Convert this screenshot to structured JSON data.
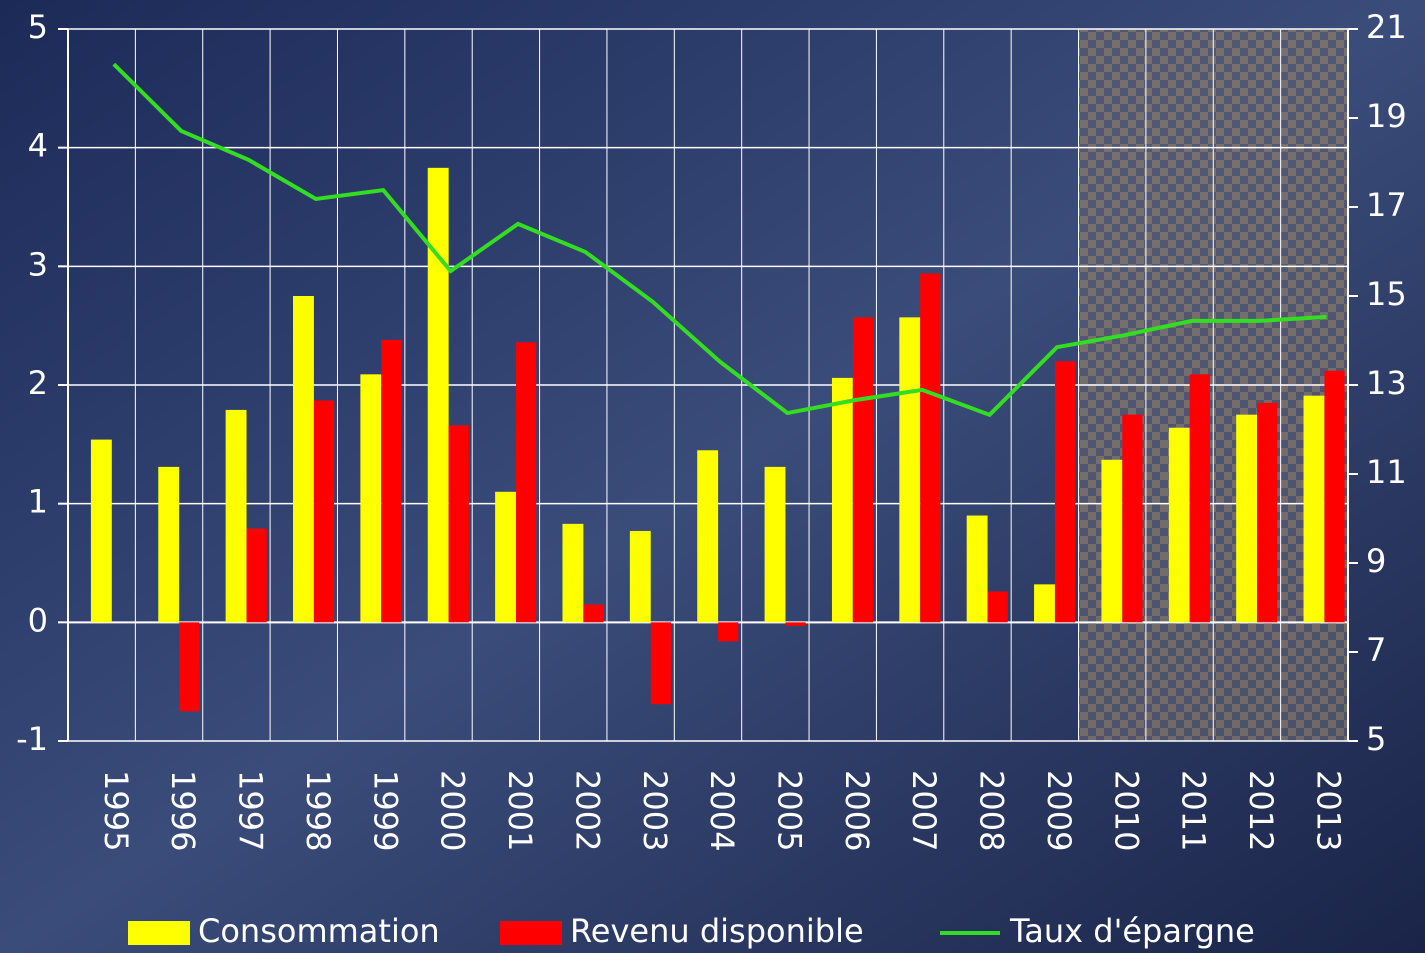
{
  "chart_data": {
    "type": "bar",
    "categories": [
      "1995",
      "1996",
      "1997",
      "1998",
      "1999",
      "2000",
      "2001",
      "2002",
      "2003",
      "2004",
      "2005",
      "2006",
      "2007",
      "2008",
      "2009",
      "2010",
      "2011",
      "2012",
      "2013"
    ],
    "series": [
      {
        "name": "Consommation",
        "color": "#ffff00",
        "values": [
          1.54,
          1.31,
          1.79,
          2.75,
          2.09,
          3.83,
          1.1,
          0.83,
          0.77,
          1.45,
          1.31,
          2.06,
          2.57,
          0.9,
          0.32,
          1.37,
          1.64,
          1.75,
          1.91
        ]
      },
      {
        "name": "Revenu disponible",
        "color": "#ff0000",
        "values": [
          null,
          -0.75,
          0.79,
          1.87,
          2.38,
          1.66,
          2.36,
          0.15,
          -0.69,
          -0.16,
          -0.03,
          2.57,
          2.94,
          0.26,
          2.2,
          1.75,
          2.09,
          1.85,
          2.12
        ]
      },
      {
        "name": "Taux d'épargne",
        "type": "line",
        "axis": "y2",
        "color": "#33dd22",
        "values": [
          20.21,
          18.71,
          18.06,
          17.18,
          17.38,
          15.56,
          16.62,
          15.99,
          14.87,
          13.52,
          12.37,
          12.66,
          12.89,
          12.33,
          13.85,
          14.12,
          14.44,
          14.44,
          14.53
        ]
      }
    ],
    "ylim": [
      -1,
      5
    ],
    "yticks": [
      -1,
      0,
      1,
      2,
      3,
      4,
      5
    ],
    "y2lim": [
      5,
      21
    ],
    "y2ticks": [
      5,
      7,
      9,
      11,
      13,
      15,
      17,
      19,
      21
    ],
    "grid": true,
    "legend": "bottom"
  }
}
